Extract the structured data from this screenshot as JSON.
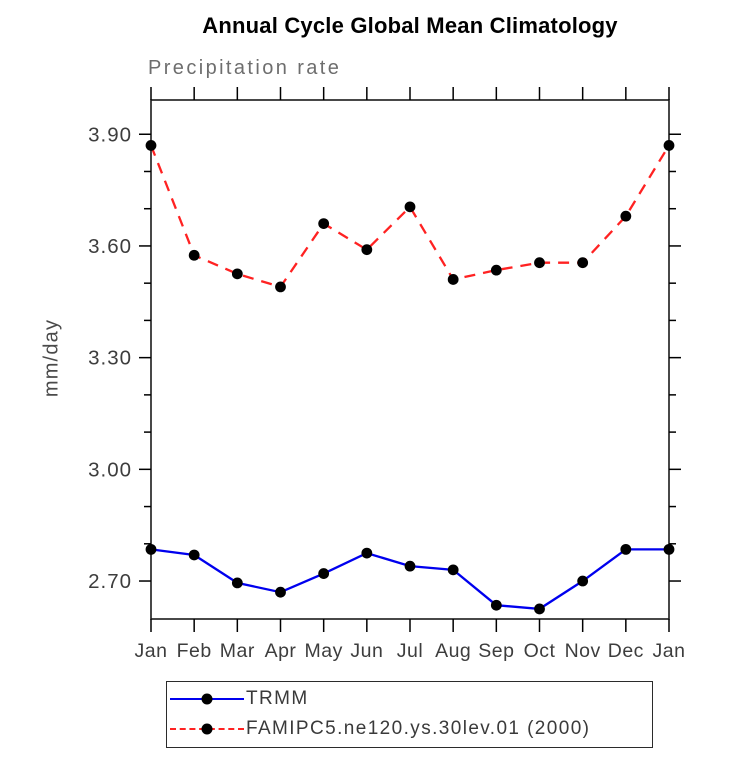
{
  "chart_data": {
    "type": "line",
    "title": "Annual Cycle Global Mean Climatology",
    "subtitle": "Precipitation rate",
    "xlabel": "",
    "ylabel": "mm/day",
    "categories": [
      "Jan",
      "Feb",
      "Mar",
      "Apr",
      "May",
      "Jun",
      "Jul",
      "Aug",
      "Sep",
      "Oct",
      "Nov",
      "Dec",
      "Jan"
    ],
    "series": [
      {
        "name": "TRMM",
        "line_style": "solid",
        "color": "#0000ee",
        "marker": "filled-circle",
        "marker_color": "#000000",
        "values": [
          2.785,
          2.77,
          2.695,
          2.67,
          2.72,
          2.775,
          2.74,
          2.73,
          2.635,
          2.625,
          2.7,
          2.785,
          2.785
        ]
      },
      {
        "name": "FAMIPC5.ne120.ys.30lev.01 (2000)",
        "line_style": "dashed",
        "color": "#ff2222",
        "marker": "filled-circle",
        "marker_color": "#000000",
        "values": [
          3.87,
          3.575,
          3.525,
          3.49,
          3.66,
          3.59,
          3.705,
          3.51,
          3.535,
          3.555,
          3.555,
          3.68,
          3.87
        ]
      }
    ],
    "y_major_ticks": [
      2.7,
      3.0,
      3.3,
      3.6,
      3.9
    ],
    "y_minor_step": 0.1,
    "ylim": [
      2.598,
      3.992
    ],
    "grid": false,
    "legend_position": "bottom"
  },
  "colors": {
    "frame": "#1a1a1a",
    "tick": "#000000",
    "axis_text": "#3d3d3d",
    "subtitle_text": "#6e6e6e",
    "ylabel_text": "#4a4a4a"
  }
}
